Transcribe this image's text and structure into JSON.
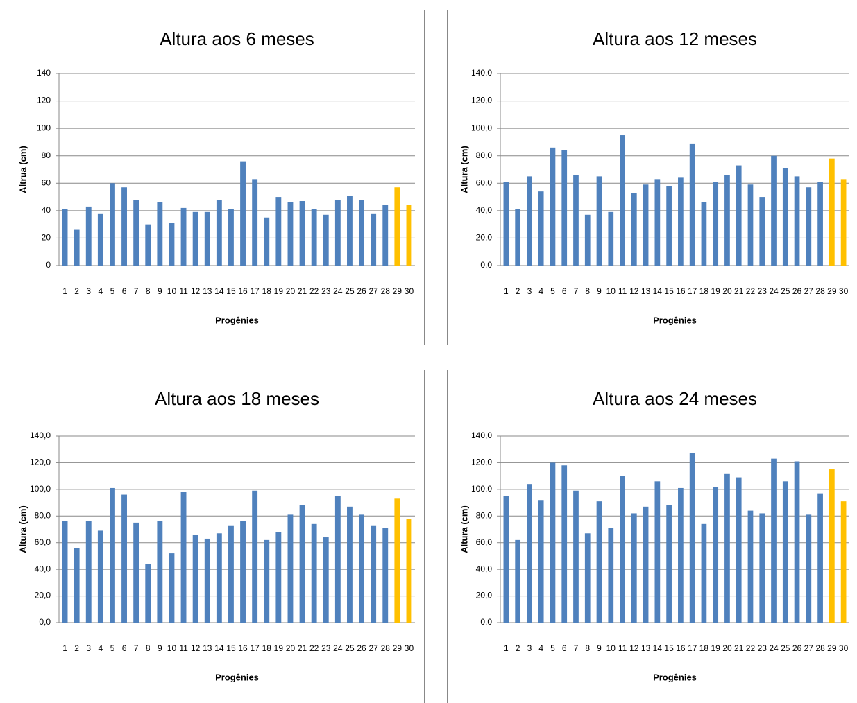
{
  "chart_data": [
    {
      "type": "bar",
      "title": "Altura aos 6 meses",
      "x_label": "Progênies",
      "y_label": "Altrua (cm)",
      "categories": [
        "1",
        "2",
        "3",
        "4",
        "5",
        "6",
        "7",
        "8",
        "9",
        "10",
        "11",
        "12",
        "13",
        "14",
        "15",
        "16",
        "17",
        "18",
        "19",
        "20",
        "21",
        "22",
        "23",
        "24",
        "25",
        "26",
        "27",
        "28",
        "29",
        "30"
      ],
      "values": [
        41,
        26,
        43,
        38,
        60,
        57,
        48,
        30,
        46,
        31,
        42,
        39,
        39,
        48,
        41,
        76,
        63,
        35,
        50,
        46,
        47,
        41,
        37,
        48,
        51,
        48,
        38,
        44,
        57,
        44
      ],
      "colors": [
        "#4f81bd",
        "#4f81bd",
        "#4f81bd",
        "#4f81bd",
        "#4f81bd",
        "#4f81bd",
        "#4f81bd",
        "#4f81bd",
        "#4f81bd",
        "#4f81bd",
        "#4f81bd",
        "#4f81bd",
        "#4f81bd",
        "#4f81bd",
        "#4f81bd",
        "#4f81bd",
        "#4f81bd",
        "#4f81bd",
        "#4f81bd",
        "#4f81bd",
        "#4f81bd",
        "#4f81bd",
        "#4f81bd",
        "#4f81bd",
        "#4f81bd",
        "#4f81bd",
        "#4f81bd",
        "#4f81bd",
        "#ffc000",
        "#ffc000"
      ],
      "ylim": [
        0,
        140
      ],
      "yticks": [
        0,
        20,
        40,
        60,
        80,
        100,
        120,
        140
      ],
      "grid": true
    },
    {
      "type": "bar",
      "title": "Altura aos 12 meses",
      "x_label": "Progênies",
      "y_label": "Altura (cm)",
      "categories": [
        "1",
        "2",
        "3",
        "4",
        "5",
        "6",
        "7",
        "8",
        "9",
        "10",
        "11",
        "12",
        "13",
        "14",
        "15",
        "16",
        "17",
        "18",
        "19",
        "20",
        "21",
        "22",
        "23",
        "24",
        "25",
        "26",
        "27",
        "28",
        "29",
        "30"
      ],
      "values": [
        61,
        41,
        65,
        54,
        86,
        84,
        66,
        37,
        65,
        39,
        95,
        53,
        59,
        63,
        58,
        64,
        89,
        46,
        61,
        66,
        73,
        59,
        50,
        80,
        71,
        65,
        57,
        61,
        78,
        63
      ],
      "colors": [
        "#4f81bd",
        "#4f81bd",
        "#4f81bd",
        "#4f81bd",
        "#4f81bd",
        "#4f81bd",
        "#4f81bd",
        "#4f81bd",
        "#4f81bd",
        "#4f81bd",
        "#4f81bd",
        "#4f81bd",
        "#4f81bd",
        "#4f81bd",
        "#4f81bd",
        "#4f81bd",
        "#4f81bd",
        "#4f81bd",
        "#4f81bd",
        "#4f81bd",
        "#4f81bd",
        "#4f81bd",
        "#4f81bd",
        "#4f81bd",
        "#4f81bd",
        "#4f81bd",
        "#4f81bd",
        "#4f81bd",
        "#ffc000",
        "#ffc000"
      ],
      "ylim": [
        0,
        140
      ],
      "yticks": [
        {
          "value": 0,
          "label": "0,0"
        },
        {
          "value": 20,
          "label": "20,0"
        },
        {
          "value": 40,
          "label": "40,0"
        },
        {
          "value": 60,
          "label": "60,0"
        },
        {
          "value": 80,
          "label": "80,0"
        },
        {
          "value": 100,
          "label": "100,0"
        },
        {
          "value": 120,
          "label": "120,0"
        },
        {
          "value": 140,
          "label": "140,0"
        }
      ],
      "grid": true
    },
    {
      "type": "bar",
      "title": "Altura aos 18 meses",
      "x_label": "Progênies",
      "y_label": "Altura (cm)",
      "categories": [
        "1",
        "2",
        "3",
        "4",
        "5",
        "6",
        "7",
        "8",
        "9",
        "10",
        "11",
        "12",
        "13",
        "14",
        "15",
        "16",
        "17",
        "18",
        "19",
        "20",
        "21",
        "22",
        "23",
        "24",
        "25",
        "26",
        "27",
        "28",
        "29",
        "30"
      ],
      "values": [
        76,
        56,
        76,
        69,
        101,
        96,
        75,
        44,
        76,
        52,
        98,
        66,
        63,
        67,
        73,
        76,
        99,
        62,
        68,
        81,
        88,
        74,
        64,
        95,
        87,
        81,
        73,
        71,
        93,
        78
      ],
      "colors": [
        "#4f81bd",
        "#4f81bd",
        "#4f81bd",
        "#4f81bd",
        "#4f81bd",
        "#4f81bd",
        "#4f81bd",
        "#4f81bd",
        "#4f81bd",
        "#4f81bd",
        "#4f81bd",
        "#4f81bd",
        "#4f81bd",
        "#4f81bd",
        "#4f81bd",
        "#4f81bd",
        "#4f81bd",
        "#4f81bd",
        "#4f81bd",
        "#4f81bd",
        "#4f81bd",
        "#4f81bd",
        "#4f81bd",
        "#4f81bd",
        "#4f81bd",
        "#4f81bd",
        "#4f81bd",
        "#4f81bd",
        "#ffc000",
        "#ffc000"
      ],
      "ylim": [
        0,
        140
      ],
      "yticks": [
        {
          "value": 0,
          "label": "0,0"
        },
        {
          "value": 20,
          "label": "20,0"
        },
        {
          "value": 40,
          "label": "40,0"
        },
        {
          "value": 60,
          "label": "60,0"
        },
        {
          "value": 80,
          "label": "80,0"
        },
        {
          "value": 100,
          "label": "100,0"
        },
        {
          "value": 120,
          "label": "120,0"
        },
        {
          "value": 140,
          "label": "140,0"
        }
      ],
      "grid": true
    },
    {
      "type": "bar",
      "title": "Altura aos 24 meses",
      "x_label": "Progênies",
      "y_label": "Altura (cm)",
      "categories": [
        "1",
        "2",
        "3",
        "4",
        "5",
        "6",
        "7",
        "8",
        "9",
        "10",
        "11",
        "12",
        "13",
        "14",
        "15",
        "16",
        "17",
        "18",
        "19",
        "20",
        "21",
        "22",
        "23",
        "24",
        "25",
        "26",
        "27",
        "28",
        "29",
        "30"
      ],
      "values": [
        95,
        62,
        104,
        92,
        120,
        118,
        99,
        67,
        91,
        71,
        110,
        82,
        87,
        106,
        88,
        101,
        127,
        74,
        102,
        112,
        109,
        84,
        82,
        123,
        106,
        121,
        81,
        97,
        115,
        91
      ],
      "colors": [
        "#4f81bd",
        "#4f81bd",
        "#4f81bd",
        "#4f81bd",
        "#4f81bd",
        "#4f81bd",
        "#4f81bd",
        "#4f81bd",
        "#4f81bd",
        "#4f81bd",
        "#4f81bd",
        "#4f81bd",
        "#4f81bd",
        "#4f81bd",
        "#4f81bd",
        "#4f81bd",
        "#4f81bd",
        "#4f81bd",
        "#4f81bd",
        "#4f81bd",
        "#4f81bd",
        "#4f81bd",
        "#4f81bd",
        "#4f81bd",
        "#4f81bd",
        "#4f81bd",
        "#4f81bd",
        "#4f81bd",
        "#ffc000",
        "#ffc000"
      ],
      "ylim": [
        0,
        140
      ],
      "yticks": [
        {
          "value": 0,
          "label": "0,0"
        },
        {
          "value": 20,
          "label": "20,0"
        },
        {
          "value": 40,
          "label": "40,0"
        },
        {
          "value": 60,
          "label": "60,0"
        },
        {
          "value": 80,
          "label": "80,0"
        },
        {
          "value": 100,
          "label": "100,0"
        },
        {
          "value": 120,
          "label": "120,0"
        },
        {
          "value": 140,
          "label": "140,0"
        }
      ],
      "grid": true
    }
  ]
}
